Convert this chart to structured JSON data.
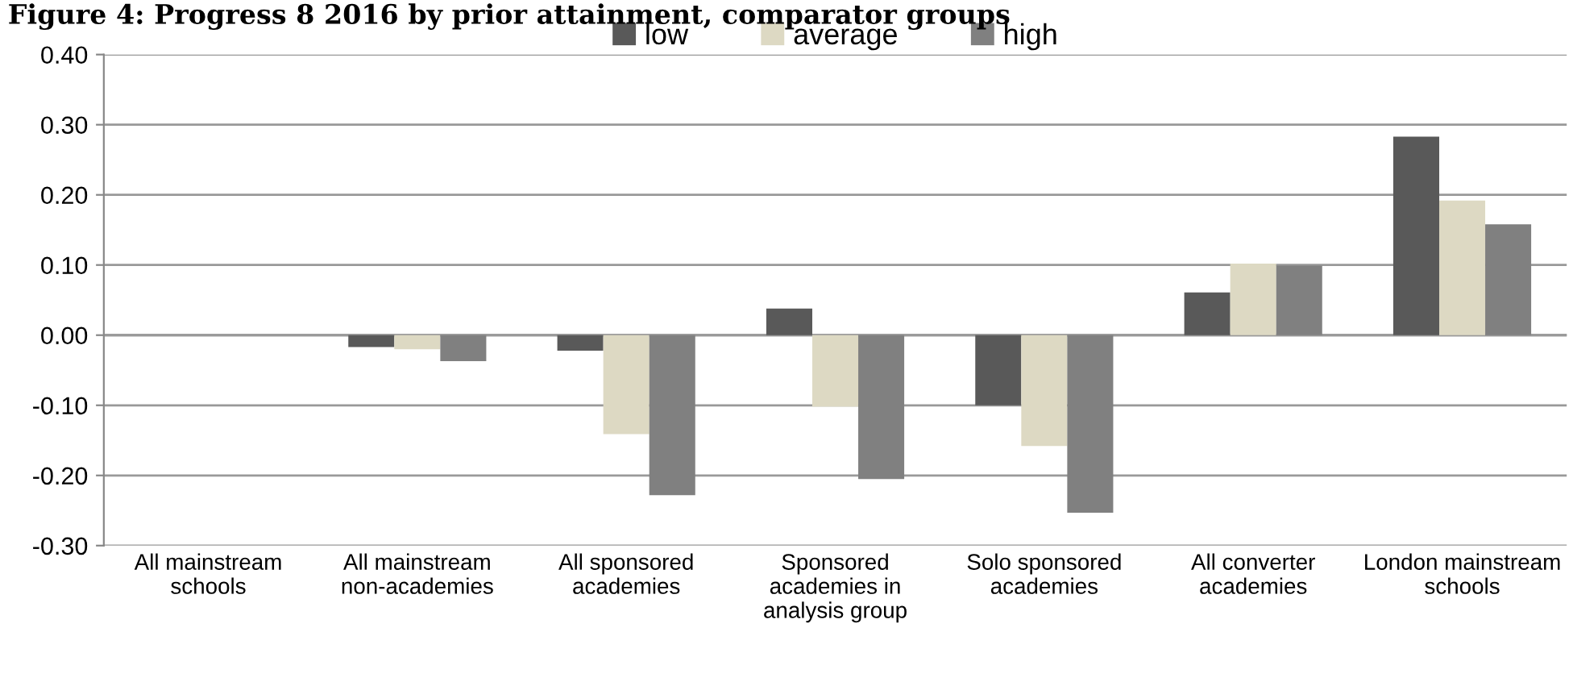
{
  "chart_data": {
    "type": "bar",
    "title": "Figure 4: Progress 8 2016 by prior attainment, comparator groups",
    "categories": [
      "All mainstream schools",
      "All mainstream non-academies",
      "All sponsored academies",
      "Sponsored academies in analysis group",
      "Solo sponsored academies",
      "All converter academies",
      "London mainstream schools"
    ],
    "series": [
      {
        "name": "low",
        "color": "#595959",
        "values": [
          0,
          -0.017,
          -0.022,
          0.038,
          -0.1,
          0.061,
          0.283
        ]
      },
      {
        "name": "average",
        "color": "#ddd9c3",
        "values": [
          0,
          -0.02,
          -0.141,
          -0.102,
          -0.158,
          0.102,
          0.192
        ]
      },
      {
        "name": "high",
        "color": "#808080",
        "values": [
          0,
          -0.037,
          -0.228,
          -0.205,
          -0.253,
          0.099,
          0.158
        ]
      }
    ],
    "ylim": [
      -0.3,
      0.4
    ],
    "yticks": [
      {
        "value": -0.3,
        "label": "-0.30"
      },
      {
        "value": -0.2,
        "label": "-0.20"
      },
      {
        "value": -0.1,
        "label": "-0.10"
      },
      {
        "value": 0,
        "label": "0.00"
      },
      {
        "value": 0.1,
        "label": "0.10"
      },
      {
        "value": 0.2,
        "label": "0.20"
      },
      {
        "value": 0.3,
        "label": "0.30"
      },
      {
        "value": 0.4,
        "label": "0.40"
      }
    ],
    "grid": "y",
    "legend": "top"
  }
}
